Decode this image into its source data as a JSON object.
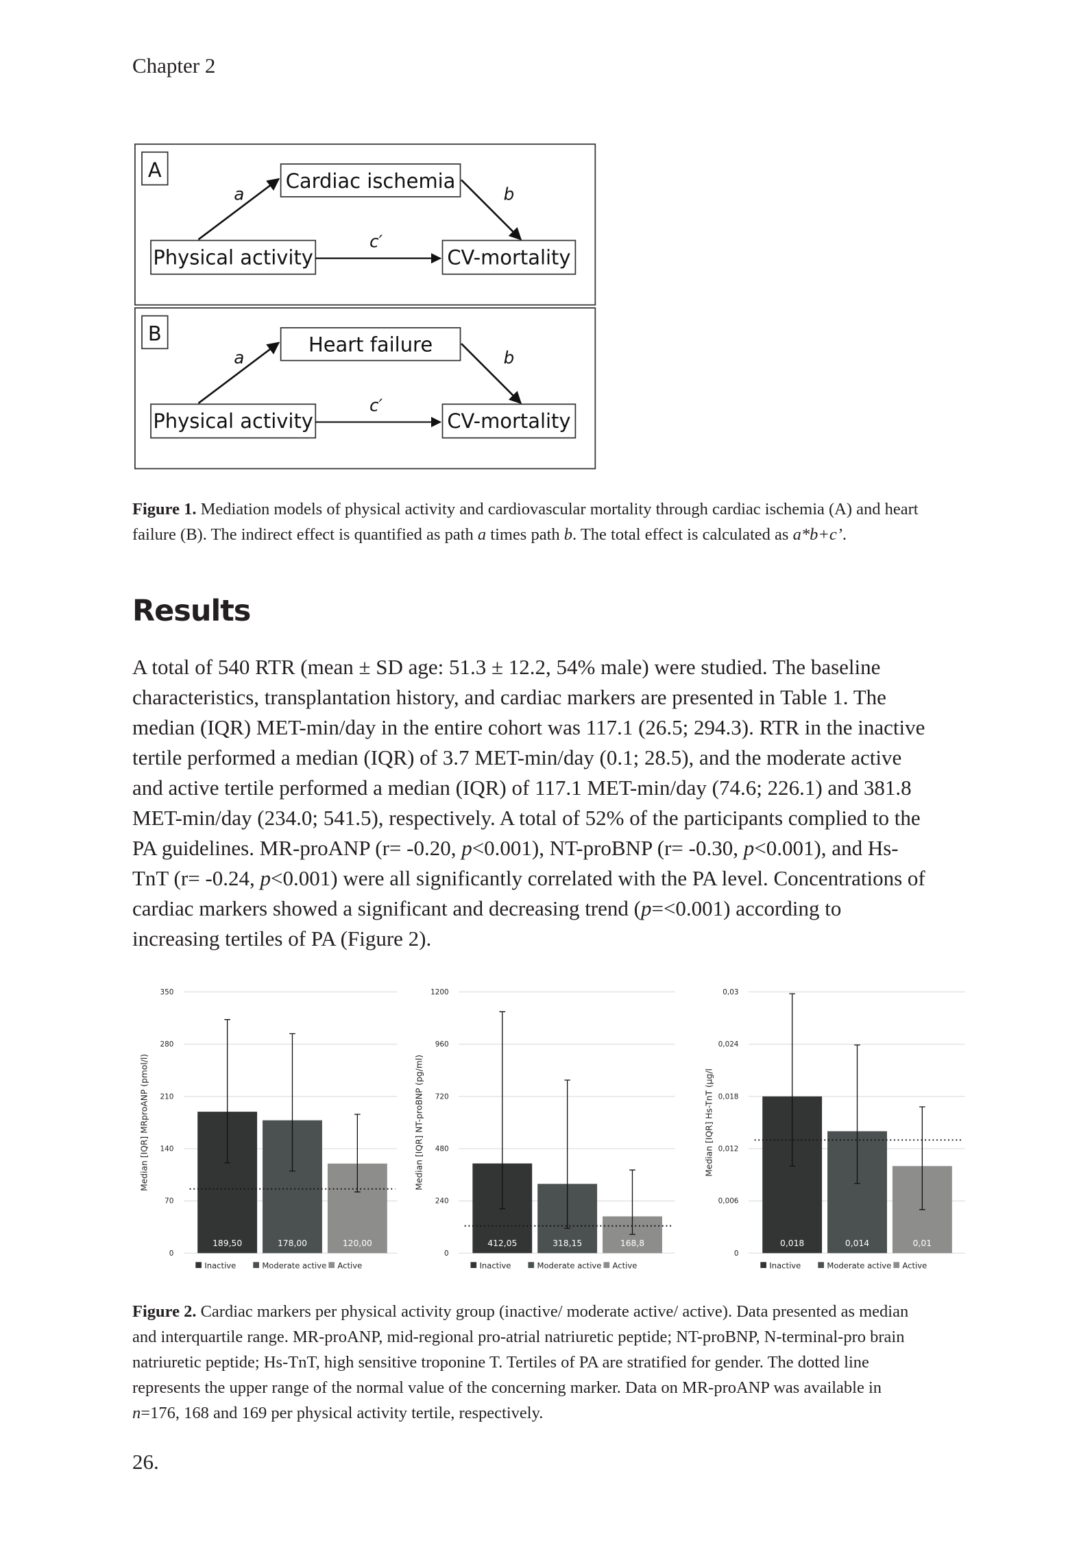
{
  "header": {
    "chapter": "Chapter 2"
  },
  "figure1": {
    "panels": [
      {
        "label": "A",
        "mediator": "Cardiac ischemia",
        "exposure": "Physical activity",
        "outcome": "CV-mortality",
        "path_a": "a",
        "path_b": "b",
        "path_c": "c′"
      },
      {
        "label": "B",
        "mediator": "Heart failure",
        "exposure": "Physical activity",
        "outcome": "CV-mortality",
        "path_a": "a",
        "path_b": "b",
        "path_c": "c′"
      }
    ],
    "caption": {
      "label": "Figure 1.",
      "parts": [
        {
          "text": " Mediation models of physical activity and cardiovascular mortality through cardiac ischemia (A) and heart failure (B). The indirect effect is quantified as path "
        },
        {
          "text": "a",
          "italic": true
        },
        {
          "text": " times path "
        },
        {
          "text": "b",
          "italic": true
        },
        {
          "text": ". The total effect is calculated as "
        },
        {
          "text": "a*b+c’",
          "italic": true
        },
        {
          "text": "."
        }
      ]
    }
  },
  "results": {
    "heading": "Results",
    "parts": [
      {
        "text": "A total of 540 RTR (mean ± SD age: 51.3 ± 12.2, 54% male) were studied. The baseline characteristics, transplantation history, and cardiac markers are presented in Table 1. The median (IQR) MET-min/day in the entire cohort was 117.1 (26.5; 294.3). RTR in the inactive tertile performed a median (IQR) of 3.7 MET-min/day (0.1; 28.5), and the moderate active and active tertile performed a median (IQR) of 117.1 MET-min/day (74.6; 226.1) and 381.8 MET-min/day (234.0; 541.5), respectively. A total of 52% of the participants complied to the PA guidelines. MR-proANP (r= -0.20, "
      },
      {
        "text": "p",
        "italic": true
      },
      {
        "text": "<0.001), NT-proBNP (r= -0.30, "
      },
      {
        "text": "p",
        "italic": true
      },
      {
        "text": "<0.001), and Hs-TnT (r= -0.24, "
      },
      {
        "text": "p",
        "italic": true
      },
      {
        "text": "<0.001) were all significantly correlated with the PA level. Concentrations of cardiac markers showed a significant and decreasing trend ("
      },
      {
        "text": "p",
        "italic": true
      },
      {
        "text": "=<0.001) according to increasing tertiles of PA (Figure 2)."
      }
    ]
  },
  "chart_data": [
    {
      "type": "bar",
      "ylabel": "Median [IQR] MRproANP (pmol/l)",
      "categories": [
        "Inactive",
        "Moderate active",
        "Active"
      ],
      "values": [
        189.5,
        178,
        120
      ],
      "value_labels": [
        "189,50",
        "178,00",
        "120,00"
      ],
      "error_low": [
        121,
        110,
        82
      ],
      "error_high": [
        313,
        294,
        186
      ],
      "reference_line": 86,
      "colors": [
        "#333534",
        "#4b5150",
        "#8d8e8b"
      ],
      "ylim": [
        0,
        350
      ],
      "yticks": [
        0,
        70,
        140,
        210,
        280,
        350
      ],
      "grid": true
    },
    {
      "type": "bar",
      "ylabel": "Median [IQR] NT-proBNP (pg/ml)",
      "categories": [
        "Inactive",
        "Moderate active",
        "Active"
      ],
      "values": [
        412.05,
        318.15,
        168.8
      ],
      "value_labels": [
        "412,05",
        "318,15",
        "168,8"
      ],
      "error_low": [
        204,
        114,
        86
      ],
      "error_high": [
        1109,
        795,
        382
      ],
      "reference_line": 125,
      "colors": [
        "#333534",
        "#4b5150",
        "#8d8e8b"
      ],
      "ylim": [
        0,
        1200
      ],
      "yticks": [
        0,
        240,
        480,
        720,
        960,
        1200
      ],
      "grid": true
    },
    {
      "type": "bar",
      "ylabel": "Median [IQR] Hs-TnT (µg/l",
      "categories": [
        "Inactive",
        "Moderate active",
        "Active"
      ],
      "values": [
        0.018,
        0.014,
        0.01
      ],
      "value_labels": [
        "0,018",
        "0,014",
        "0,01"
      ],
      "error_low": [
        0.01,
        0.008,
        0.005
      ],
      "error_high": [
        0.0298,
        0.0239,
        0.0168
      ],
      "reference_line": 0.013,
      "colors": [
        "#333534",
        "#4b5150",
        "#8d8e8b"
      ],
      "ylim": [
        0,
        0.03
      ],
      "yticks": [
        0,
        {
          "value": 0.006,
          "label": "0,006"
        },
        {
          "value": 0.012,
          "label": "0,012"
        },
        {
          "value": 0.018,
          "label": "0,018"
        },
        {
          "value": 0.024,
          "label": "0,024"
        },
        {
          "value": 0.03,
          "label": "0,03"
        }
      ],
      "grid": true
    }
  ],
  "figure2": {
    "caption": {
      "label": "Figure 2.",
      "parts": [
        {
          "text": " Cardiac markers per physical activity group (inactive/ moderate active/ active). Data presented as median and interquartile range. MR-proANP, mid-regional pro-atrial natriuretic peptide; NT-proBNP, N-terminal-pro brain natriuretic peptide; Hs-TnT, high sensitive troponine T. Tertiles of PA are stratified for gender. The dotted line represents the upper range of the normal value of the concerning marker. Data on MR-proANP was available in "
        },
        {
          "text": "n",
          "italic": true
        },
        {
          "text": "=176, 168 and 169 per physical activity tertile, respectively."
        }
      ]
    }
  },
  "footer": {
    "page": "26."
  }
}
